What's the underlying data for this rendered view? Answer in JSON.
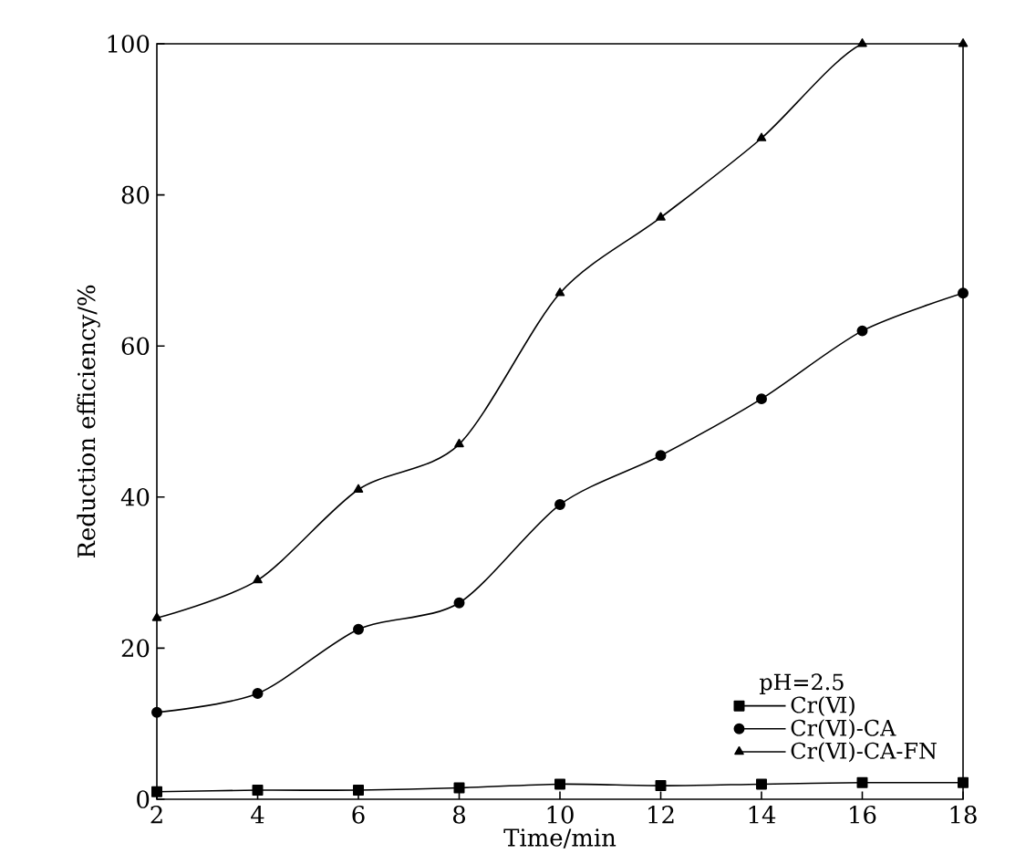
{
  "chart_data": {
    "type": "line",
    "xlabel": "Time/min",
    "ylabel": "Reduction efficiency/%",
    "legend_title": "pH=2.5",
    "legend": "bottom right",
    "line_style": "solid",
    "x": [
      2,
      4,
      6,
      8,
      10,
      12,
      14,
      16,
      18
    ],
    "xlim": [
      2,
      18
    ],
    "xticks": [
      2,
      4,
      6,
      8,
      10,
      12,
      14,
      16,
      18
    ],
    "ylim": [
      0,
      100
    ],
    "yticks": [
      0,
      20,
      40,
      60,
      80,
      100
    ],
    "series": [
      {
        "name": "Cr(Ⅵ)",
        "color": "#000000",
        "marker": "square",
        "values": [
          1,
          1.2,
          1.2,
          1.5,
          2,
          1.8,
          2,
          2.2,
          2.2
        ]
      },
      {
        "name": "Cr(Ⅵ)-CA",
        "color": "#000000",
        "marker": "circle",
        "values": [
          11.5,
          14,
          22.5,
          26,
          39,
          45.5,
          53,
          62,
          67
        ]
      },
      {
        "name": "Cr(Ⅵ)-CA-FN",
        "color": "#000000",
        "marker": "triangle",
        "values": [
          24,
          29,
          41,
          47,
          67,
          77,
          87.5,
          100,
          100
        ]
      }
    ]
  }
}
